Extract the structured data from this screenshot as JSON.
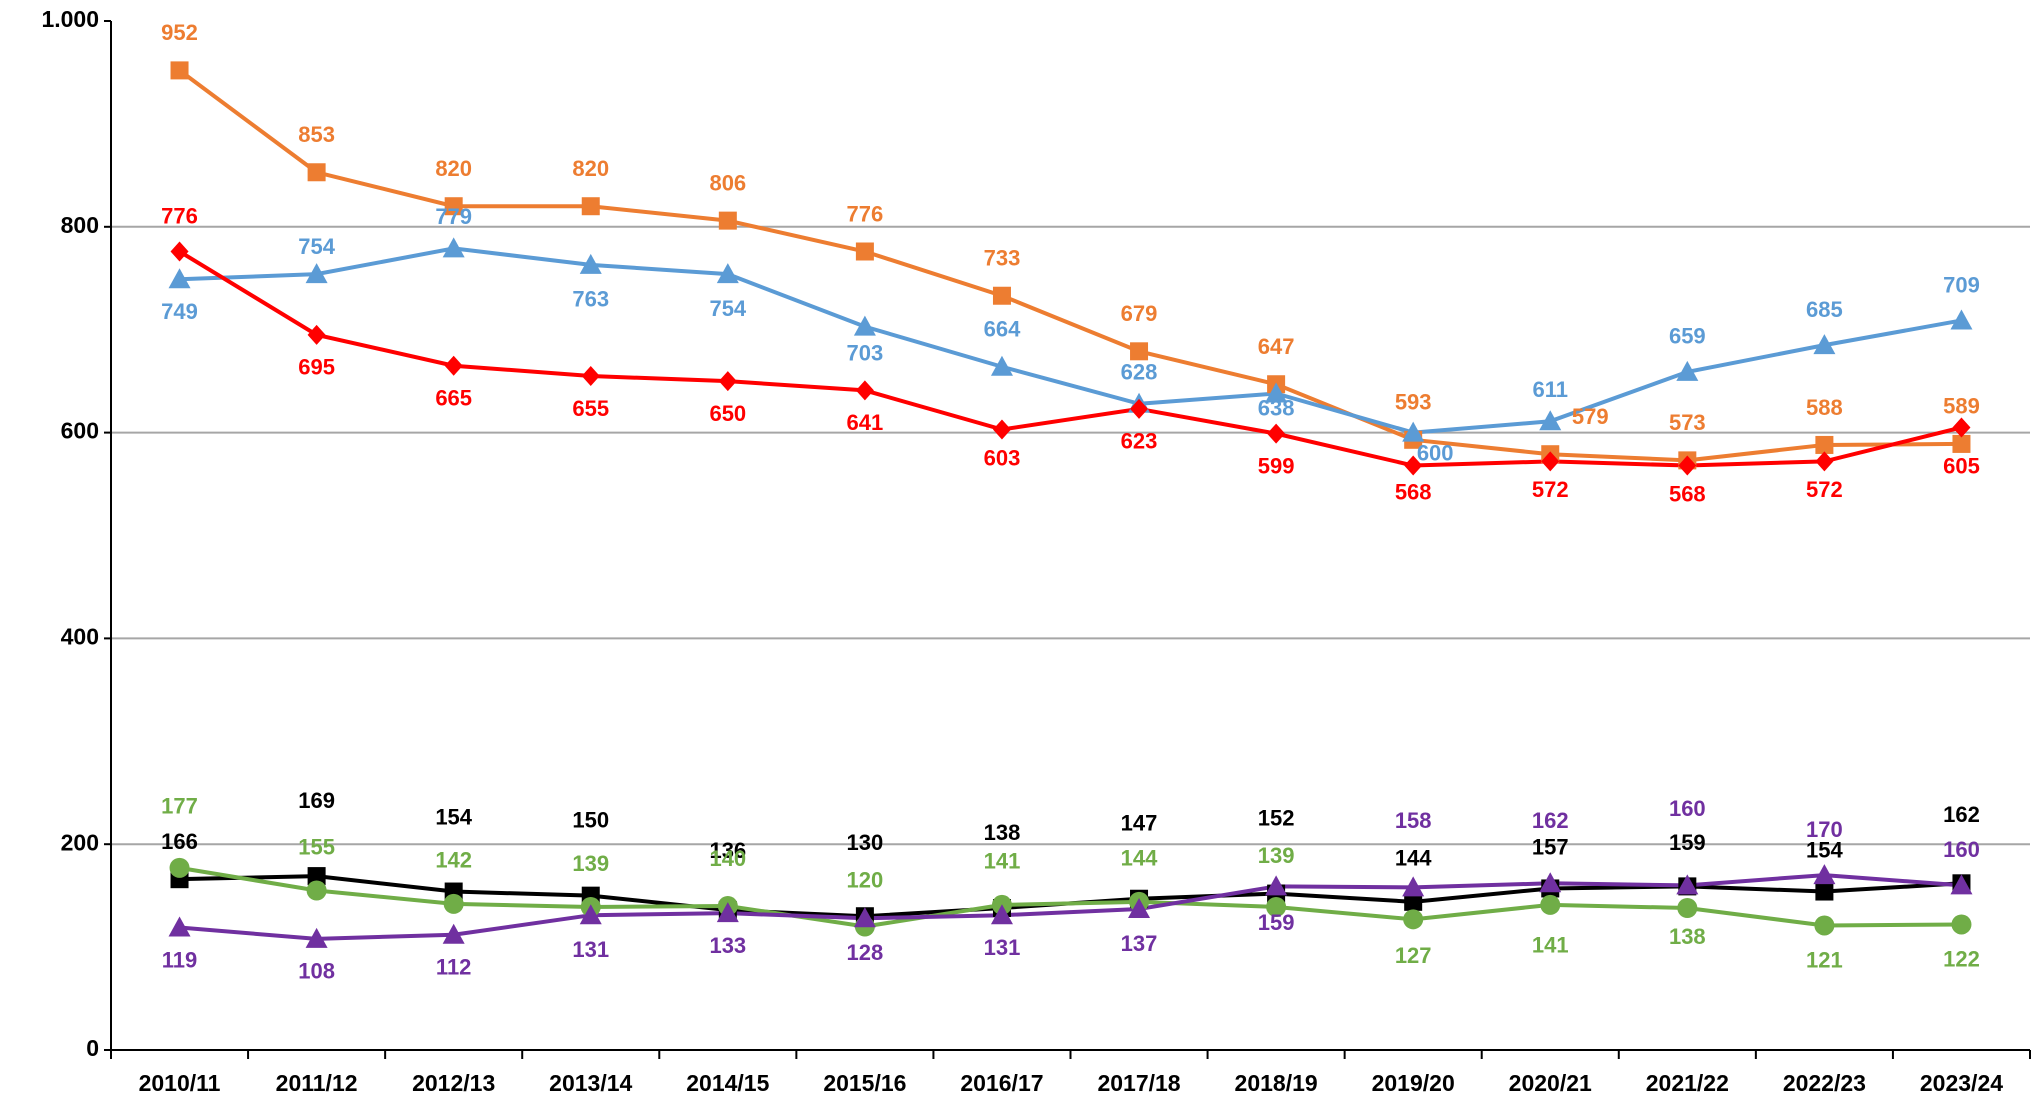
{
  "chart_data": {
    "type": "line",
    "categories": [
      "2010/11",
      "2011/12",
      "2012/13",
      "2013/14",
      "2014/15",
      "2015/16",
      "2016/17",
      "2017/18",
      "2018/19",
      "2019/20",
      "2020/21",
      "2021/22",
      "2022/23",
      "2023/24"
    ],
    "series": [
      {
        "color": "#ed7d31",
        "marker": "square",
        "values": [
          952,
          853,
          820,
          820,
          806,
          776,
          733,
          679,
          647,
          593,
          579,
          573,
          588,
          589
        ]
      },
      {
        "color": "#5b9bd5",
        "marker": "triangle",
        "values": [
          749,
          754,
          779,
          763,
          754,
          703,
          664,
          628,
          638,
          600,
          611,
          659,
          685,
          709
        ]
      },
      {
        "color": "#ff0000",
        "marker": "diamond",
        "values": [
          776,
          695,
          665,
          655,
          650,
          641,
          603,
          623,
          599,
          568,
          572,
          568,
          572,
          605
        ]
      },
      {
        "color": "#000000",
        "marker": "square",
        "values": [
          166,
          169,
          154,
          150,
          136,
          130,
          138,
          147,
          152,
          144,
          157,
          159,
          154,
          162
        ]
      },
      {
        "color": "#70ad47",
        "marker": "circle",
        "values": [
          177,
          155,
          142,
          139,
          140,
          120,
          141,
          144,
          139,
          127,
          141,
          138,
          121,
          122
        ]
      },
      {
        "color": "#7030a0",
        "marker": "triangle",
        "values": [
          119,
          108,
          112,
          131,
          133,
          128,
          131,
          137,
          159,
          158,
          162,
          160,
          170,
          160
        ]
      }
    ],
    "ylim": [
      0,
      1000
    ],
    "yticks": [
      0,
      200,
      400,
      600,
      800,
      {
        "value": 1000,
        "label": "1.000"
      }
    ],
    "grid": true
  }
}
